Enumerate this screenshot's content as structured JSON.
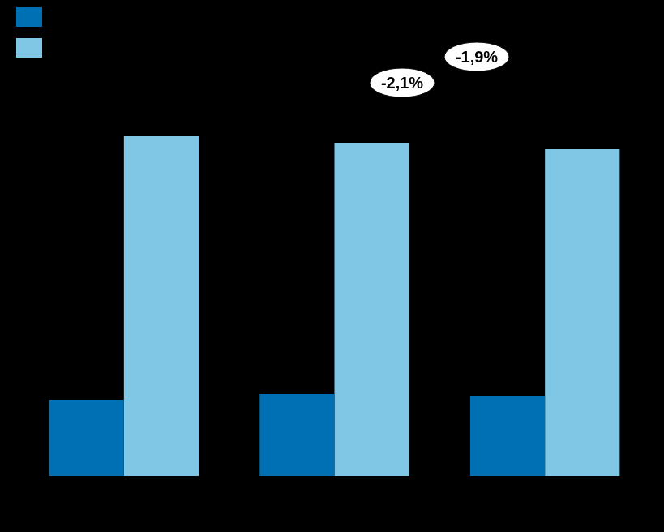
{
  "chart_data": {
    "type": "bar",
    "categories": [
      null,
      null,
      null
    ],
    "series": [
      {
        "color": "#0070b5",
        "values": [
          94,
          101,
          99
        ]
      },
      {
        "color": "#7fc7e4",
        "values": [
          419,
          411,
          403
        ]
      }
    ],
    "ylim": [
      0,
      480
    ],
    "grid": false,
    "tick_labels": false,
    "legend": "top-left",
    "annotations": [
      "-2,1%",
      "-1,9%"
    ]
  }
}
